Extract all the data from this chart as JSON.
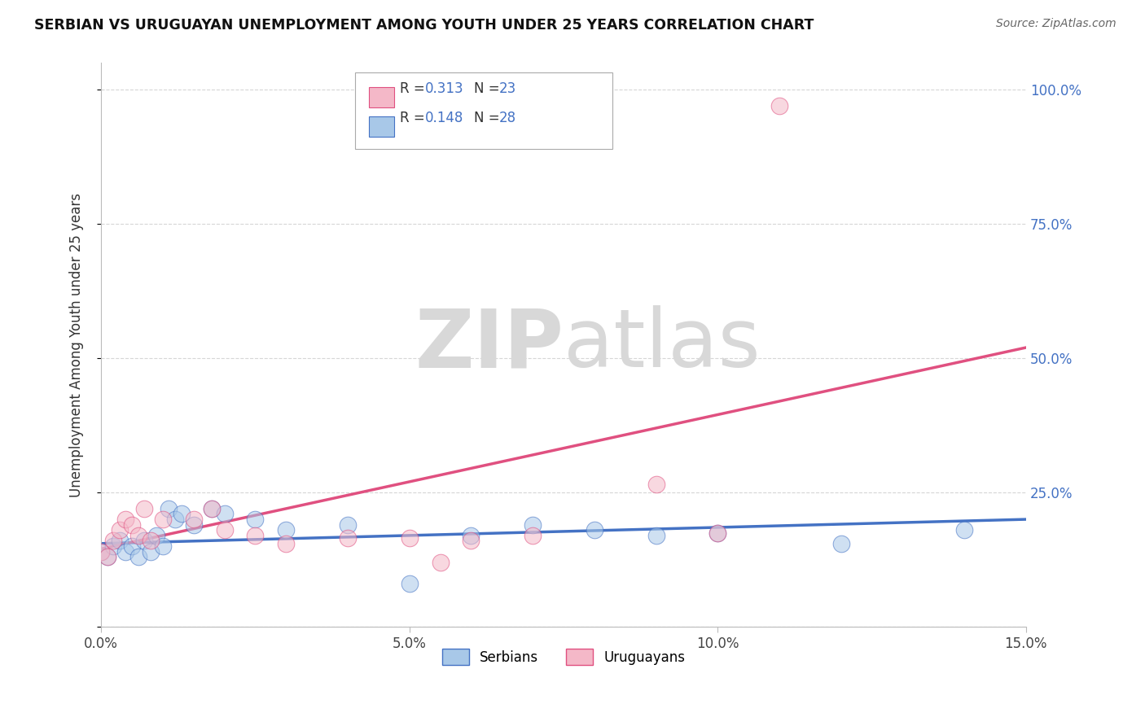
{
  "title": "SERBIAN VS URUGUAYAN UNEMPLOYMENT AMONG YOUTH UNDER 25 YEARS CORRELATION CHART",
  "source": "Source: ZipAtlas.com",
  "ylabel": "Unemployment Among Youth under 25 years",
  "xlim": [
    0.0,
    0.15
  ],
  "ylim": [
    0.0,
    1.05
  ],
  "xticks": [
    0.0,
    0.05,
    0.1,
    0.15
  ],
  "xticklabels": [
    "0.0%",
    "5.0%",
    "10.0%",
    "15.0%"
  ],
  "yticks": [
    0.0,
    0.25,
    0.5,
    0.75,
    1.0
  ],
  "yticklabels_right": [
    "",
    "25.0%",
    "50.0%",
    "75.0%",
    "100.0%"
  ],
  "serbian_color": "#a8c8e8",
  "uruguayan_color": "#f4b8c8",
  "serbian_line_color": "#4472c4",
  "uruguayan_line_color": "#e05080",
  "watermark_zip": "ZIP",
  "watermark_atlas": "atlas",
  "legend_R_serbian": "R = 0.148",
  "legend_N_serbian": "N = 28",
  "legend_R_uruguayan": "R = 0.313",
  "legend_N_uruguayan": "N = 23",
  "legend_value_color": "#4472c4",
  "serbian_x": [
    0.0,
    0.001,
    0.002,
    0.003,
    0.004,
    0.005,
    0.006,
    0.007,
    0.008,
    0.009,
    0.01,
    0.011,
    0.012,
    0.013,
    0.015,
    0.018,
    0.02,
    0.025,
    0.03,
    0.04,
    0.05,
    0.06,
    0.07,
    0.08,
    0.09,
    0.1,
    0.12,
    0.14
  ],
  "serbian_y": [
    0.14,
    0.13,
    0.15,
    0.16,
    0.14,
    0.15,
    0.13,
    0.16,
    0.14,
    0.17,
    0.15,
    0.22,
    0.2,
    0.21,
    0.19,
    0.22,
    0.21,
    0.2,
    0.18,
    0.19,
    0.08,
    0.17,
    0.19,
    0.18,
    0.17,
    0.175,
    0.155,
    0.18
  ],
  "uruguayan_x": [
    0.0,
    0.001,
    0.002,
    0.003,
    0.004,
    0.005,
    0.006,
    0.007,
    0.008,
    0.01,
    0.015,
    0.018,
    0.02,
    0.025,
    0.03,
    0.04,
    0.05,
    0.055,
    0.06,
    0.07,
    0.09,
    0.1,
    0.11
  ],
  "uruguayan_y": [
    0.14,
    0.13,
    0.16,
    0.18,
    0.2,
    0.19,
    0.17,
    0.22,
    0.16,
    0.2,
    0.2,
    0.22,
    0.18,
    0.17,
    0.155,
    0.165,
    0.165,
    0.12,
    0.16,
    0.17,
    0.265,
    0.175,
    0.97
  ],
  "serbian_trendline_x": [
    0.0,
    0.15
  ],
  "serbian_trendline_y": [
    0.155,
    0.2
  ],
  "uruguayan_trendline_x": [
    0.0,
    0.15
  ],
  "uruguayan_trendline_y": [
    0.145,
    0.52
  ]
}
